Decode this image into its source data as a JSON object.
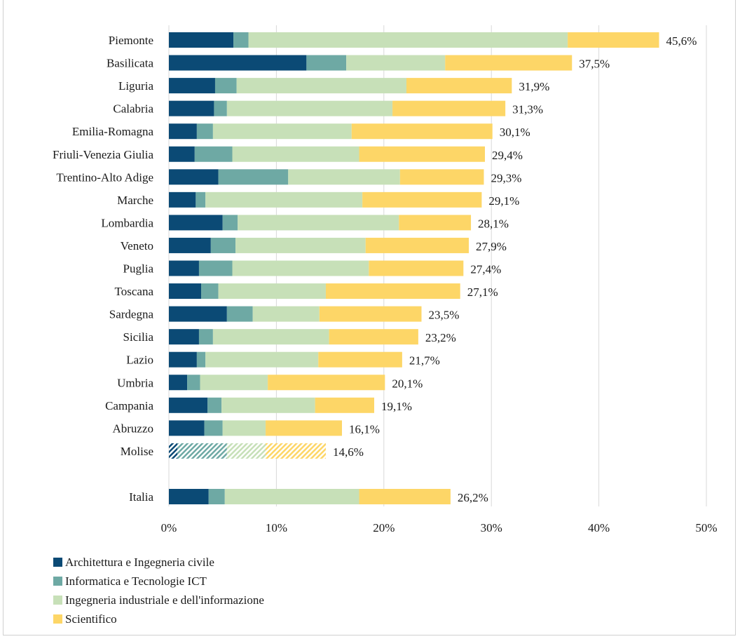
{
  "chart_data": {
    "type": "bar",
    "orientation": "horizontal",
    "stacked": true,
    "grid": true,
    "legend_position": "bottom-left",
    "xlim": [
      0,
      50
    ],
    "xticks": [
      0,
      10,
      20,
      30,
      40,
      50
    ],
    "xtick_labels": [
      "0%",
      "10%",
      "20%",
      "30%",
      "40%",
      "50%"
    ],
    "categories": [
      "Piemonte",
      "Basilicata",
      "Liguria",
      "Calabria",
      "Emilia-Romagna",
      "Friuli-Venezia Giulia",
      "Trentino-Alto Adige",
      "Marche",
      "Lombardia",
      "Veneto",
      "Puglia",
      "Toscana",
      "Sardegna",
      "Sicilia",
      "Lazio",
      "Umbria",
      "Campania",
      "Abruzzo",
      "Molise",
      "Italia"
    ],
    "series": [
      {
        "name": "Architettura e Ingegneria civile",
        "color": "#0b4a75",
        "values": [
          6.0,
          12.8,
          4.3,
          4.2,
          2.6,
          2.4,
          4.6,
          2.5,
          5.0,
          3.9,
          2.8,
          3.0,
          5.4,
          2.8,
          2.6,
          1.7,
          3.6,
          3.3,
          0.8,
          3.7
        ]
      },
      {
        "name": "Informatica e Tecnologie ICT",
        "color": "#6ea9a4",
        "values": [
          1.4,
          3.7,
          2.0,
          1.2,
          1.5,
          3.5,
          6.5,
          0.9,
          1.4,
          2.3,
          3.1,
          1.6,
          2.4,
          1.3,
          0.8,
          1.2,
          1.3,
          1.7,
          4.6,
          1.5
        ]
      },
      {
        "name": "Ingegneria industriale e dell'informazione",
        "color": "#c7e0b8",
        "values": [
          29.7,
          9.2,
          15.8,
          15.4,
          12.9,
          11.8,
          10.4,
          14.6,
          15.0,
          12.1,
          12.7,
          10.0,
          6.2,
          10.8,
          10.5,
          6.3,
          8.7,
          4.0,
          3.6,
          12.5
        ]
      },
      {
        "name": "Scientifico",
        "color": "#fdd667",
        "values": [
          8.5,
          11.8,
          9.8,
          10.5,
          13.1,
          11.7,
          7.8,
          11.1,
          6.7,
          9.6,
          8.8,
          12.5,
          9.5,
          8.3,
          7.8,
          10.9,
          5.5,
          7.1,
          5.6,
          8.5
        ]
      }
    ],
    "totals": [
      45.6,
      37.5,
      31.9,
      31.3,
      30.1,
      29.4,
      29.3,
      29.1,
      28.1,
      27.9,
      27.4,
      27.1,
      23.5,
      23.2,
      21.7,
      20.1,
      19.1,
      16.1,
      14.6,
      26.2
    ],
    "total_labels": [
      "45,6%",
      "37,5%",
      "31,9%",
      "31,3%",
      "30,1%",
      "29,4%",
      "29,3%",
      "29,1%",
      "28,1%",
      "27,9%",
      "27,4%",
      "27,1%",
      "23,5%",
      "23,2%",
      "21,7%",
      "20,1%",
      "19,1%",
      "16,1%",
      "14,6%",
      "26,2%"
    ],
    "hatched_categories": [
      "Molise"
    ],
    "separated_categories": [
      "Italia"
    ]
  }
}
